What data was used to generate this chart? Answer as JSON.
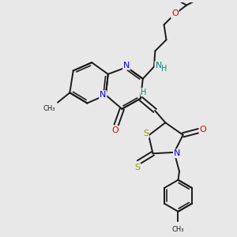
{
  "bg_color": "#e8e8e8",
  "bond_color": "#1a1a1a",
  "bond_width": 1.4,
  "figsize": [
    3.0,
    3.0
  ],
  "dpi": 100,
  "N_blue": "#0000ee",
  "N_teal": "#008080",
  "O_red": "#dd0000",
  "S_yellow": "#999900",
  "xlim": [
    0,
    9
  ],
  "ylim": [
    0,
    10
  ]
}
